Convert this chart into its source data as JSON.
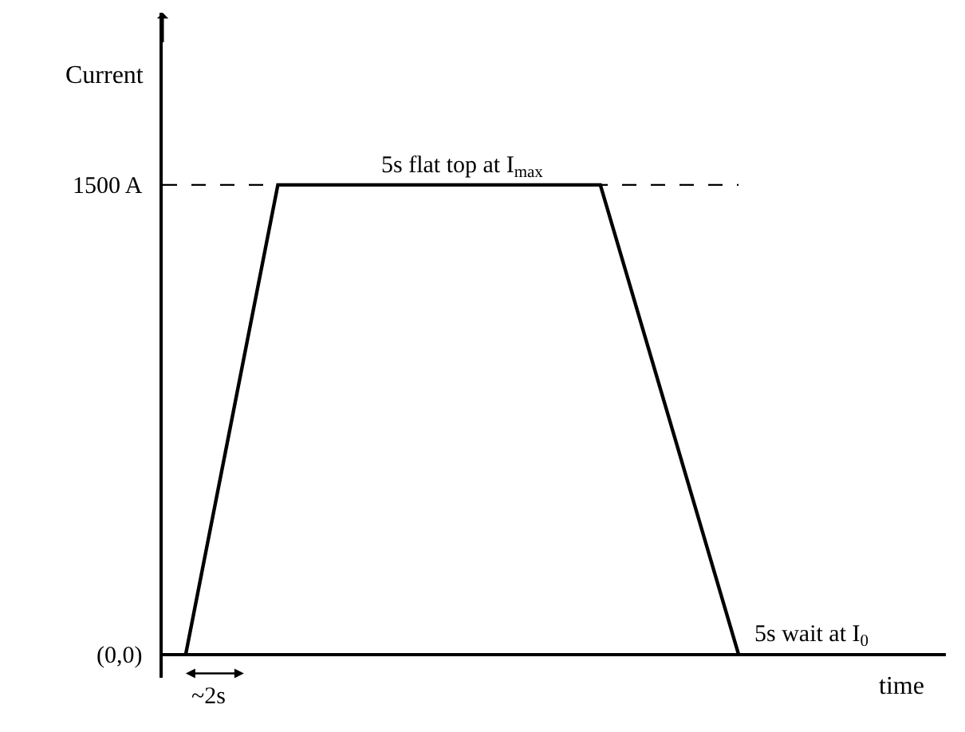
{
  "chart_data": {
    "type": "line",
    "xlabel": "time",
    "ylabel": "Current",
    "categories": [
      null,
      null,
      null,
      null,
      null,
      null,
      null,
      null,
      null,
      null,
      null,
      null,
      null,
      null,
      null,
      null,
      null
    ],
    "series": [
      {
        "color": "#000000",
        "values": [
          0,
          750,
          1500,
          1500,
          1500,
          1500,
          1500,
          1500,
          1500,
          1500,
          1000,
          500,
          0,
          null,
          null,
          null,
          null
        ]
      }
    ],
    "ylim": [
      -75,
      2050
    ],
    "yticks": [
      {
        "value": 0,
        "label": "(0,0)"
      },
      {
        "value": 1500,
        "label": "1500 A"
      }
    ],
    "tick_labels": "y",
    "marker": "none",
    "line_style": "solid",
    "ref_lines": [
      {
        "axis": "y",
        "value": 1500,
        "label": null,
        "line_style": "dashed",
        "color": "#000000"
      }
    ],
    "annotations": [
      {
        "text": "5s flat top at I$_{max}$",
        "y": 1500
      },
      "5s wait at I$_{0}$",
      "~2s"
    ]
  }
}
